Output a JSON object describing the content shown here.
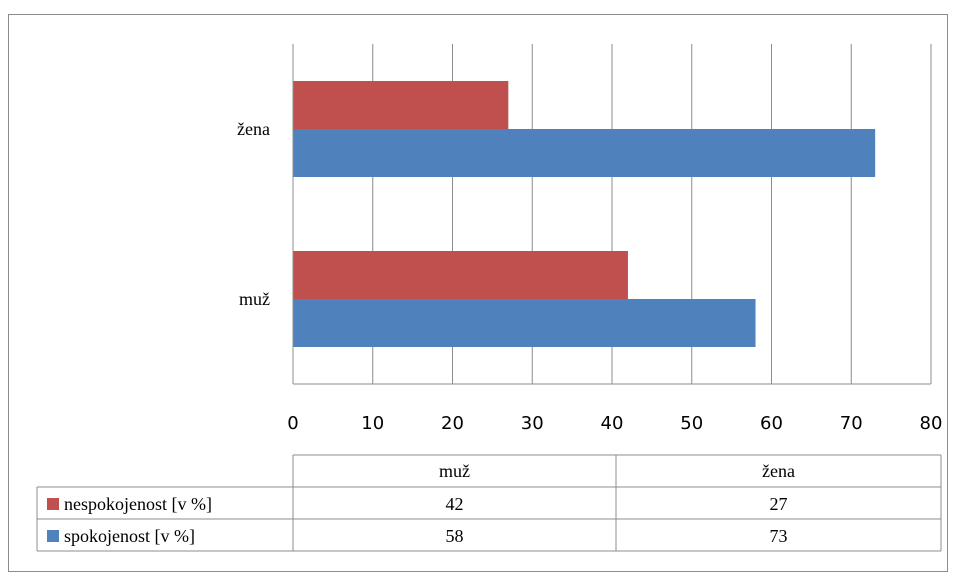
{
  "chart_data": {
    "type": "bar",
    "orientation": "horizontal",
    "categories": [
      "muž",
      "žena"
    ],
    "series": [
      {
        "name": "nespokojenost [v %]",
        "values": [
          42,
          27
        ],
        "color": "#c0504d"
      },
      {
        "name": "spokojenost [v %]",
        "values": [
          58,
          73
        ],
        "color": "#4f81bd"
      }
    ],
    "x_ticks": [
      "0",
      "10",
      "20",
      "30",
      "40",
      "50",
      "60",
      "70",
      "80"
    ],
    "xlim": [
      0,
      80
    ],
    "grid": true,
    "data_table": {
      "columns": [
        "muž",
        "žena"
      ],
      "rows": [
        {
          "label": "nespokojenost [v %]",
          "values": [
            "42",
            "27"
          ]
        },
        {
          "label": "spokojenost [v %]",
          "values": [
            "58",
            "73"
          ]
        }
      ]
    }
  }
}
